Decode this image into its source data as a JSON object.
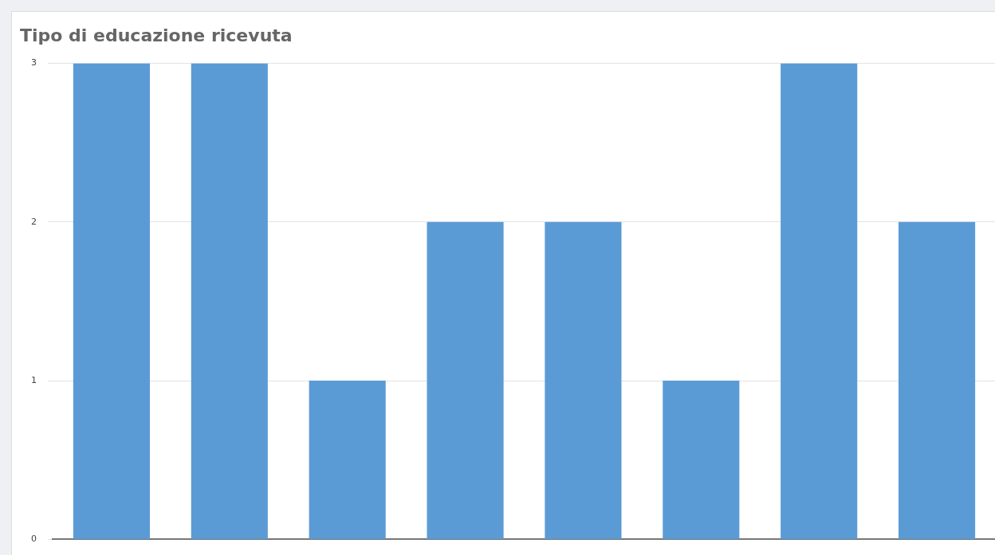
{
  "chart_data": {
    "type": "bar",
    "title": "Tipo di educazione ricevuta",
    "categories": [
      null,
      null,
      null,
      null,
      null,
      null,
      null,
      null
    ],
    "values": [
      3,
      3,
      1,
      2,
      2,
      1,
      3,
      2
    ],
    "color": "#5b9bd5",
    "ylim": [
      0,
      3
    ],
    "yticks": [
      0,
      1,
      2,
      3
    ],
    "grid": "y",
    "legend": false
  }
}
